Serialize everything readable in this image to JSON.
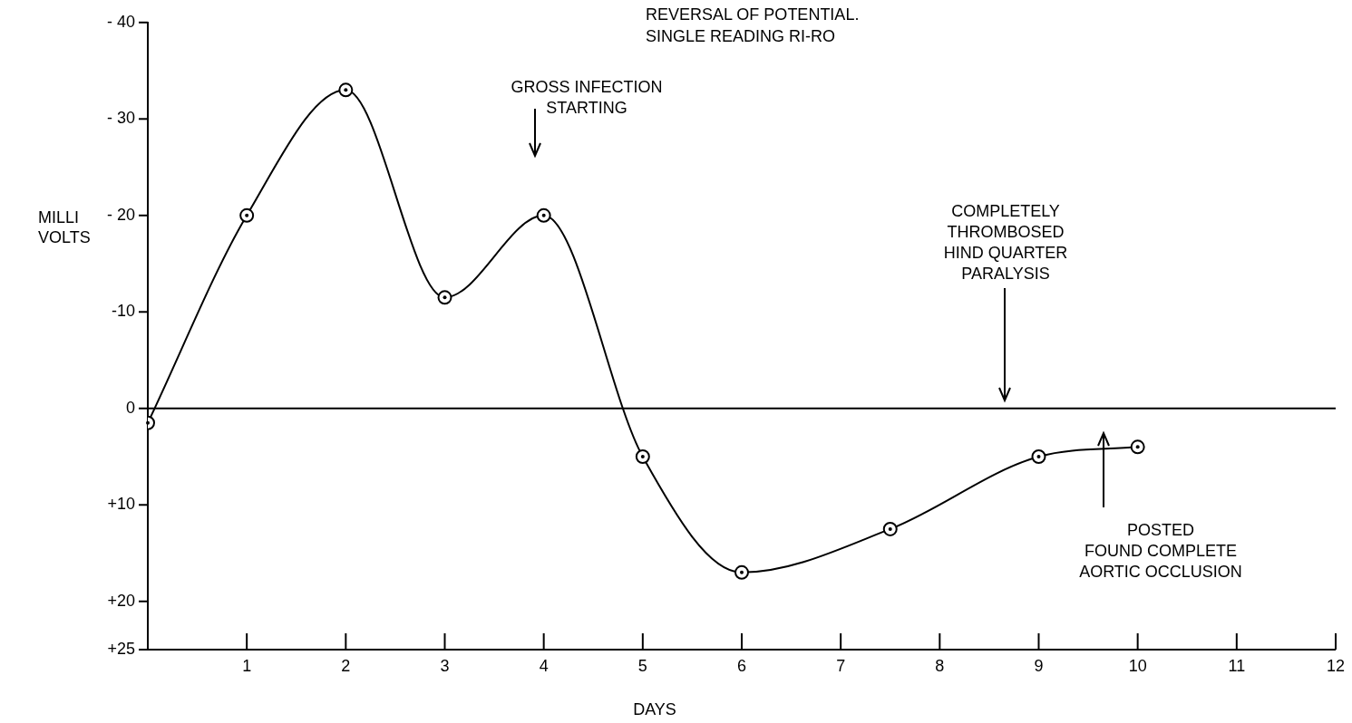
{
  "chart_data": {
    "type": "line",
    "title": "REVERSAL OF POTENTIAL.\nSINGLE READING RI-RO",
    "xlabel": "DAYS",
    "ylabel": "MILLI\nVOLTS",
    "x": [
      0,
      1,
      2,
      3,
      4,
      5,
      6,
      7.5,
      9,
      10
    ],
    "series": [
      {
        "color": "#000000",
        "values": [
          1.5,
          -20,
          -33,
          -11.5,
          -20,
          5,
          17,
          12.5,
          5,
          4
        ]
      }
    ],
    "xlim": [
      0,
      12
    ],
    "xticks": [
      {
        "value": 0,
        "label": null
      },
      1,
      2,
      3,
      4,
      5,
      6,
      7,
      8,
      9,
      10,
      11,
      12
    ],
    "ylim": [
      25,
      -40
    ],
    "yticks": [
      {
        "value": -40,
        "label": "- 40"
      },
      {
        "value": -30,
        "label": "- 30"
      },
      {
        "value": -20,
        "label": "- 20"
      },
      {
        "value": -10,
        "label": "-10"
      },
      0,
      {
        "value": 10,
        "label": "+10"
      },
      {
        "value": 20,
        "label": "+20"
      },
      {
        "value": 25,
        "label": "+25"
      }
    ],
    "ref_lines": [
      {
        "axis": "y",
        "value": 0,
        "color": "#000000"
      }
    ],
    "annotations": [
      "GROSS INFECTION\nSTARTING",
      "COMPLETELY\nTHROMBOSED\nHIND QUARTER\nPARALYSIS",
      "POSTED\nFOUND COMPLETE\nAORTIC OCCLUSION"
    ],
    "grid": false,
    "legend": false,
    "marker": "circle",
    "line_style": "solid"
  }
}
